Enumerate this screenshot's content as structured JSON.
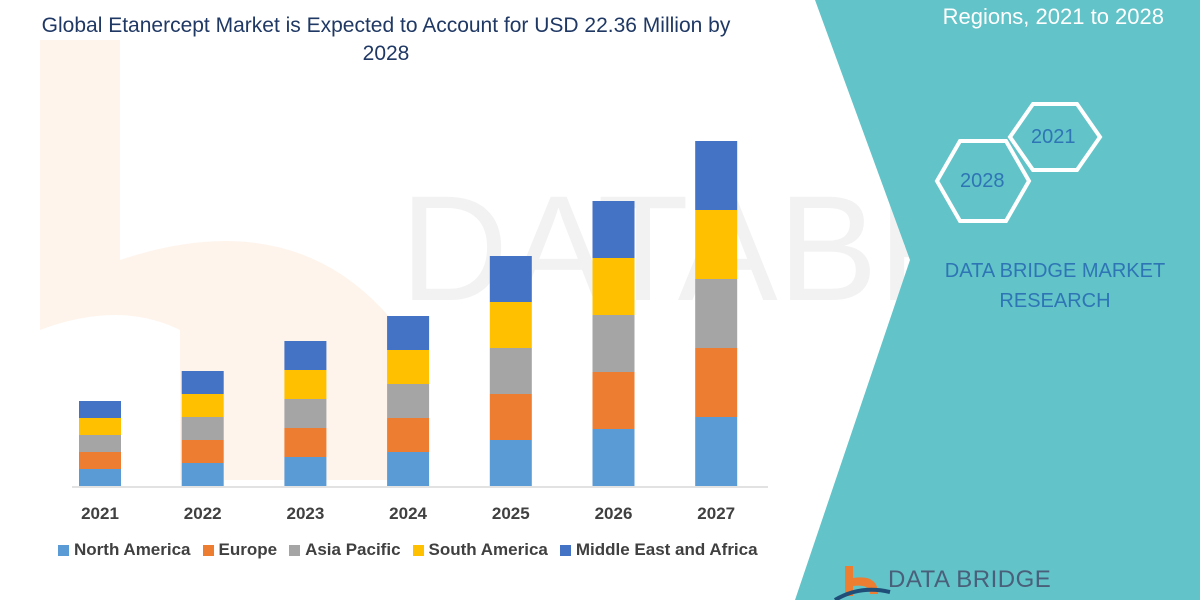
{
  "header": {
    "title": "Global Etanercept Market is Expected to Account for USD 22.36 Million by 2028",
    "side_title": "Regions, 2021 to 2028"
  },
  "side_panel": {
    "hex_a": "2021",
    "hex_b": "2028",
    "brand": "DATA BRIDGE MARKET RESEARCH",
    "logo_text": "DATA BRIDGE",
    "panel_color": "#62c3c8"
  },
  "chart_data": {
    "type": "bar",
    "stacked": true,
    "title": "Global Etanercept Market is Expected to Account for USD 22.36 Million by 2028",
    "xlabel": "",
    "ylabel": "",
    "y_axis_shown": false,
    "grid": false,
    "legend_position": "bottom",
    "categories": [
      "2021",
      "2022",
      "2023",
      "2024",
      "2025",
      "2026",
      "2027"
    ],
    "series": [
      {
        "name": "North America",
        "color": "#5b9bd5",
        "values": [
          17,
          23,
          29,
          34,
          46,
          57,
          69
        ]
      },
      {
        "name": "Europe",
        "color": "#ed7d31",
        "values": [
          17,
          23,
          29,
          34,
          46,
          57,
          69
        ]
      },
      {
        "name": "Asia Pacific",
        "color": "#a5a5a5",
        "values": [
          17,
          23,
          29,
          34,
          46,
          57,
          69
        ]
      },
      {
        "name": "South America",
        "color": "#ffc000",
        "values": [
          17,
          23,
          29,
          34,
          46,
          57,
          69
        ]
      },
      {
        "name": "Middle East and Africa",
        "color": "#4472c4",
        "values": [
          17,
          23,
          29,
          34,
          46,
          57,
          69
        ]
      }
    ]
  }
}
